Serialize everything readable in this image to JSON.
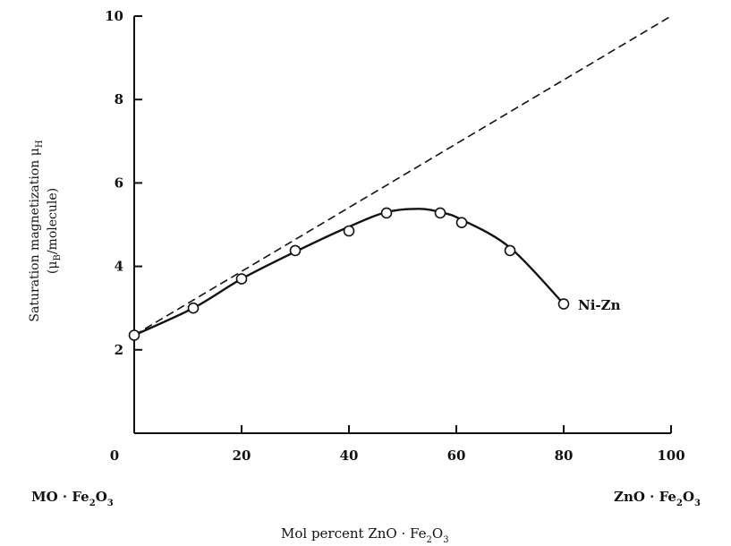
{
  "chart_data": {
    "type": "line",
    "xlim": [
      0,
      100
    ],
    "ylim": [
      0,
      10
    ],
    "x_ticks": [
      "0",
      "20",
      "40",
      "60",
      "80",
      "100"
    ],
    "y_ticks": [
      "2",
      "4",
      "6",
      "8",
      "10"
    ],
    "xlabel": {
      "main": "Mol percent ZnO · Fe",
      "sub1": "2",
      "mid": "O",
      "sub2": "3"
    },
    "ylabel": {
      "line1": {
        "main": "Saturation magnetization μ",
        "sub": "H"
      },
      "line2": {
        "pre": "(μ",
        "sub": "B",
        "post": "/molecule)"
      }
    },
    "x_end_labels": {
      "left": {
        "a": "MO · Fe",
        "s1": "2",
        "b": "O",
        "s2": "3"
      },
      "right": {
        "a": "ZnO · Fe",
        "s1": "2",
        "b": "O",
        "s2": "3"
      }
    },
    "series": [
      {
        "name": "Ni-Zn",
        "style": "solid with circles",
        "points": [
          [
            0,
            2.35
          ],
          [
            11,
            3.0
          ],
          [
            20,
            3.7
          ],
          [
            30,
            4.38
          ],
          [
            40,
            4.85
          ],
          [
            47,
            5.28
          ],
          [
            57,
            5.28
          ],
          [
            61,
            5.05
          ],
          [
            70,
            4.38
          ],
          [
            80,
            3.1
          ]
        ],
        "curve": [
          [
            0,
            2.35
          ],
          [
            11,
            3.0
          ],
          [
            20,
            3.7
          ],
          [
            30,
            4.35
          ],
          [
            40,
            4.95
          ],
          [
            47,
            5.3
          ],
          [
            53,
            5.38
          ],
          [
            57,
            5.3
          ],
          [
            61,
            5.12
          ],
          [
            70,
            4.45
          ],
          [
            80,
            3.1
          ]
        ]
      },
      {
        "name": "",
        "style": "dashed",
        "points": [
          [
            0,
            2.35
          ],
          [
            100,
            10
          ]
        ]
      }
    ],
    "colors": {
      "ink": "#111111",
      "marker_fill": "#ffffff"
    }
  }
}
